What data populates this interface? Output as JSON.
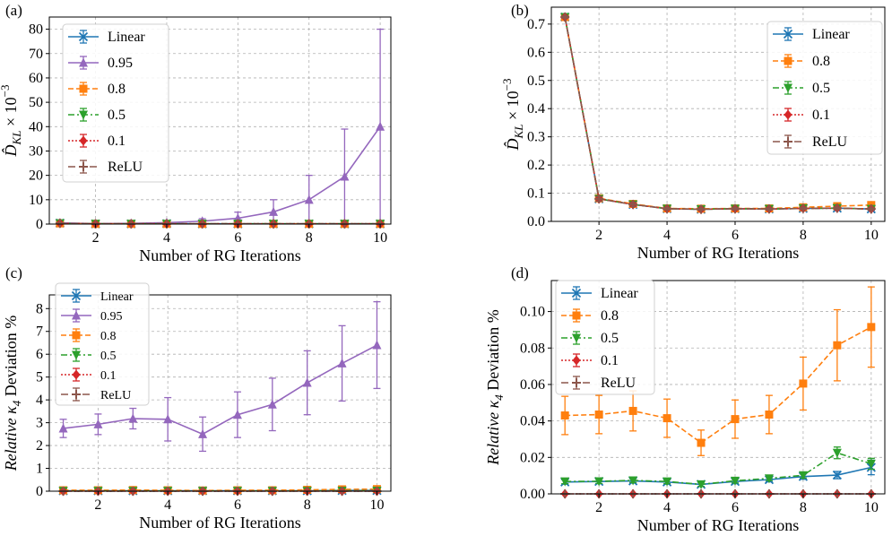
{
  "panels": [
    {
      "label": "(a)",
      "chart_data": {
        "type": "line",
        "x": [
          1,
          2,
          3,
          4,
          5,
          6,
          7,
          8,
          9,
          10
        ],
        "xlabel": "Number of RG Iterations",
        "ylabel_main": "D̂",
        "ylabel_sub": "KL",
        "ylabel_tail": " × 10",
        "ylabel_exp": "−3",
        "xlim": [
          0.7,
          10.3
        ],
        "ylim": [
          0,
          85
        ],
        "xticks": [
          2,
          4,
          6,
          8,
          10
        ],
        "yticks": [
          0,
          10,
          20,
          30,
          40,
          50,
          60,
          70,
          80
        ],
        "grid": true,
        "legend_position": "top-left",
        "series": [
          {
            "name": "Linear",
            "color": "#1f77b4",
            "dash": "solid",
            "marker": "x",
            "values": [
              0.4,
              0.1,
              0.1,
              0.2,
              0.1,
              0.1,
              0.1,
              0.1,
              0.1,
              0.1
            ],
            "errors": [
              0.3,
              0.1,
              0.1,
              0.1,
              0.1,
              0.1,
              0.1,
              0.1,
              0.1,
              0.1
            ]
          },
          {
            "name": "0.95",
            "color": "#9467bd",
            "dash": "solid",
            "marker": "triangle-up",
            "values": [
              0.5,
              0.2,
              0.3,
              0.6,
              1.2,
              2.4,
              5,
              10,
              19.5,
              40
            ],
            "errors": [
              0.4,
              0.2,
              0.2,
              0.3,
              1.0,
              2.5,
              5,
              10,
              19.5,
              40
            ]
          },
          {
            "name": "0.8",
            "color": "#ff7f0e",
            "dash": "dashed",
            "marker": "square",
            "values": [
              0.3,
              0.1,
              0.1,
              0.1,
              0.1,
              0.1,
              0.1,
              0.1,
              0.1,
              0.1
            ],
            "errors": [
              0.2,
              0.1,
              0.1,
              0.1,
              0.1,
              0.1,
              0.1,
              0.1,
              0.1,
              0.1
            ]
          },
          {
            "name": "0.5",
            "color": "#2ca02c",
            "dash": "dashdot",
            "marker": "triangle-down",
            "values": [
              0.3,
              0.1,
              0.1,
              0.1,
              0.1,
              0.1,
              0.1,
              0.1,
              0.1,
              0.1
            ],
            "errors": [
              0.2,
              0.1,
              0.1,
              0.1,
              0.1,
              0.1,
              0.1,
              0.1,
              0.1,
              0.1
            ]
          },
          {
            "name": "0.1",
            "color": "#d62728",
            "dash": "dotted",
            "marker": "diamond",
            "values": [
              0.3,
              0.1,
              0.1,
              0.1,
              0.1,
              0.1,
              0.1,
              0.1,
              0.1,
              0.1
            ],
            "errors": [
              0.2,
              0.1,
              0.1,
              0.1,
              0.1,
              0.1,
              0.1,
              0.1,
              0.1,
              0.1
            ]
          },
          {
            "name": "ReLU",
            "color": "#8c564b",
            "dash": "longdash",
            "marker": "plus",
            "values": [
              0.3,
              0.1,
              0.1,
              0.1,
              0.1,
              0.1,
              0.1,
              0.1,
              0.1,
              0.1
            ],
            "errors": [
              0.2,
              0.1,
              0.1,
              0.1,
              0.1,
              0.1,
              0.1,
              0.1,
              0.1,
              0.1
            ]
          }
        ]
      }
    },
    {
      "label": "(b)",
      "chart_data": {
        "type": "line",
        "x": [
          1,
          2,
          3,
          4,
          5,
          6,
          7,
          8,
          9,
          10
        ],
        "xlabel": "Number of RG Iterations",
        "ylabel_main": "D̂",
        "ylabel_sub": "KL",
        "ylabel_tail": " × 10",
        "ylabel_exp": "−3",
        "xlim": [
          0.6,
          10.4
        ],
        "ylim": [
          0,
          0.76
        ],
        "xticks": [
          2,
          4,
          6,
          8,
          10
        ],
        "yticks": [
          0.0,
          0.1,
          0.2,
          0.3,
          0.4,
          0.5,
          0.6,
          0.7
        ],
        "ytick_decimals": 1,
        "grid": true,
        "legend_position": "top-right",
        "series": [
          {
            "name": "Linear",
            "color": "#1f77b4",
            "dash": "solid",
            "marker": "x",
            "values": [
              0.725,
              0.08,
              0.06,
              0.045,
              0.043,
              0.045,
              0.044,
              0.046,
              0.047,
              0.044
            ],
            "errors": [
              0.004,
              0.008,
              0.007,
              0.004,
              0.004,
              0.004,
              0.004,
              0.004,
              0.004,
              0.004
            ]
          },
          {
            "name": "0.8",
            "color": "#ff7f0e",
            "dash": "dashed",
            "marker": "square",
            "values": [
              0.725,
              0.082,
              0.062,
              0.046,
              0.045,
              0.046,
              0.046,
              0.05,
              0.054,
              0.058
            ],
            "errors": [
              0.004,
              0.008,
              0.007,
              0.004,
              0.004,
              0.004,
              0.004,
              0.005,
              0.005,
              0.006
            ]
          },
          {
            "name": "0.5",
            "color": "#2ca02c",
            "dash": "dashdot",
            "marker": "triangle-down",
            "values": [
              0.725,
              0.08,
              0.06,
              0.045,
              0.043,
              0.045,
              0.044,
              0.046,
              0.047,
              0.044
            ],
            "errors": [
              0.004,
              0.008,
              0.007,
              0.004,
              0.004,
              0.004,
              0.004,
              0.004,
              0.004,
              0.004
            ]
          },
          {
            "name": "0.1",
            "color": "#d62728",
            "dash": "dotted",
            "marker": "diamond",
            "values": [
              0.725,
              0.08,
              0.06,
              0.045,
              0.043,
              0.045,
              0.044,
              0.046,
              0.047,
              0.044
            ],
            "errors": [
              0.004,
              0.008,
              0.007,
              0.004,
              0.004,
              0.004,
              0.004,
              0.004,
              0.004,
              0.004
            ]
          },
          {
            "name": "ReLU",
            "color": "#8c564b",
            "dash": "longdash",
            "marker": "plus",
            "values": [
              0.725,
              0.08,
              0.06,
              0.045,
              0.043,
              0.045,
              0.044,
              0.046,
              0.047,
              0.044
            ],
            "errors": [
              0.004,
              0.008,
              0.007,
              0.004,
              0.004,
              0.004,
              0.004,
              0.004,
              0.004,
              0.004
            ]
          }
        ]
      }
    },
    {
      "label": "(c)",
      "chart_data": {
        "type": "line",
        "x": [
          1,
          2,
          3,
          4,
          5,
          6,
          7,
          8,
          9,
          10
        ],
        "xlabel": "Number of RG Iterations",
        "ylabel_main": "Relative κ",
        "ylabel_sub": "4",
        "ylabel_tail": " Deviation %",
        "ylabel_exp": "",
        "xlim": [
          0.6,
          10.4
        ],
        "ylim": [
          0,
          8.6
        ],
        "xticks": [
          2,
          4,
          6,
          8,
          10
        ],
        "yticks": [
          0,
          1,
          2,
          3,
          4,
          5,
          6,
          7,
          8
        ],
        "grid": true,
        "legend_position": "top-left",
        "legend_small": true,
        "series": [
          {
            "name": "Linear",
            "color": "#1f77b4",
            "dash": "solid",
            "marker": "x",
            "values": [
              0.02,
              0.02,
              0.02,
              0.02,
              0.02,
              0.02,
              0.02,
              0.02,
              0.03,
              0.03
            ],
            "errors": [
              0.01,
              0.01,
              0.01,
              0.01,
              0.01,
              0.01,
              0.01,
              0.01,
              0.01,
              0.01
            ]
          },
          {
            "name": "0.95",
            "color": "#9467bd",
            "dash": "solid",
            "marker": "triangle-up",
            "values": [
              2.75,
              2.93,
              3.18,
              3.15,
              2.5,
              3.35,
              3.8,
              4.75,
              5.6,
              6.4
            ],
            "errors": [
              0.4,
              0.45,
              0.45,
              0.95,
              0.75,
              1.0,
              1.15,
              1.4,
              1.65,
              1.9
            ]
          },
          {
            "name": "0.8",
            "color": "#ff7f0e",
            "dash": "dashed",
            "marker": "square",
            "values": [
              0.04,
              0.04,
              0.05,
              0.04,
              0.03,
              0.04,
              0.04,
              0.06,
              0.08,
              0.09
            ],
            "errors": [
              0.01,
              0.01,
              0.01,
              0.01,
              0.01,
              0.01,
              0.01,
              0.02,
              0.02,
              0.02
            ]
          },
          {
            "name": "0.5",
            "color": "#2ca02c",
            "dash": "dashdot",
            "marker": "triangle-down",
            "values": [
              0.01,
              0.01,
              0.01,
              0.01,
              0.01,
              0.01,
              0.01,
              0.01,
              0.02,
              0.02
            ],
            "errors": [
              0.005,
              0.005,
              0.005,
              0.005,
              0.005,
              0.005,
              0.005,
              0.005,
              0.005,
              0.005
            ]
          },
          {
            "name": "0.1",
            "color": "#d62728",
            "dash": "dotted",
            "marker": "diamond",
            "values": [
              0,
              0,
              0,
              0,
              0,
              0,
              0,
              0,
              0,
              0
            ],
            "errors": [
              0,
              0,
              0,
              0,
              0,
              0,
              0,
              0,
              0,
              0
            ]
          },
          {
            "name": "ReLU",
            "color": "#8c564b",
            "dash": "longdash",
            "marker": "plus",
            "values": [
              0,
              0,
              0,
              0,
              0,
              0,
              0,
              0,
              0,
              0
            ],
            "errors": [
              0,
              0,
              0,
              0,
              0,
              0,
              0,
              0,
              0,
              0
            ]
          }
        ]
      }
    },
    {
      "label": "(d)",
      "chart_data": {
        "type": "line",
        "x": [
          1,
          2,
          3,
          4,
          5,
          6,
          7,
          8,
          9,
          10
        ],
        "xlabel": "Number of RG Iterations",
        "ylabel_main": "Relative κ",
        "ylabel_sub": "4",
        "ylabel_tail": " Deviation %",
        "ylabel_exp": "",
        "xlim": [
          0.6,
          10.4
        ],
        "ylim": [
          0,
          0.117
        ],
        "xticks": [
          2,
          4,
          6,
          8,
          10
        ],
        "yticks": [
          0.0,
          0.02,
          0.04,
          0.06,
          0.08,
          0.1
        ],
        "ytick_decimals": 2,
        "grid": true,
        "legend_position": "top-left",
        "series": [
          {
            "name": "Linear",
            "color": "#1f77b4",
            "dash": "solid",
            "marker": "x",
            "values": [
              0.0065,
              0.0068,
              0.0071,
              0.0065,
              0.0052,
              0.0068,
              0.0078,
              0.0095,
              0.0103,
              0.0145
            ],
            "errors": [
              0.0012,
              0.0012,
              0.0012,
              0.0012,
              0.0012,
              0.0012,
              0.0012,
              0.0015,
              0.002,
              0.004
            ]
          },
          {
            "name": "0.8",
            "color": "#ff7f0e",
            "dash": "dashed",
            "marker": "square",
            "values": [
              0.043,
              0.0435,
              0.0455,
              0.0415,
              0.028,
              0.041,
              0.0435,
              0.0605,
              0.0815,
              0.0915
            ],
            "errors": [
              0.0105,
              0.0105,
              0.011,
              0.0105,
              0.007,
              0.0105,
              0.0105,
              0.0145,
              0.0195,
              0.022
            ]
          },
          {
            "name": "0.5",
            "color": "#2ca02c",
            "dash": "dashdot",
            "marker": "triangle-down",
            "values": [
              0.0068,
              0.0069,
              0.0074,
              0.0068,
              0.0052,
              0.0072,
              0.0085,
              0.0102,
              0.0225,
              0.0165
            ],
            "errors": [
              0.0012,
              0.0012,
              0.0012,
              0.0012,
              0.0012,
              0.0012,
              0.0012,
              0.0015,
              0.0032,
              0.003
            ]
          },
          {
            "name": "0.1",
            "color": "#d62728",
            "dash": "dotted",
            "marker": "diamond",
            "values": [
              0,
              0,
              0,
              0,
              0,
              0,
              0,
              0,
              0,
              0
            ],
            "errors": [
              0,
              0,
              0,
              0,
              0,
              0,
              0,
              0,
              0,
              0
            ]
          },
          {
            "name": "ReLU",
            "color": "#8c564b",
            "dash": "longdash",
            "marker": "plus",
            "values": [
              0,
              0,
              0,
              0,
              0,
              0,
              0,
              0,
              0,
              0
            ],
            "errors": [
              0,
              0,
              0,
              0,
              0,
              0,
              0,
              0,
              0,
              0
            ]
          }
        ]
      }
    }
  ]
}
